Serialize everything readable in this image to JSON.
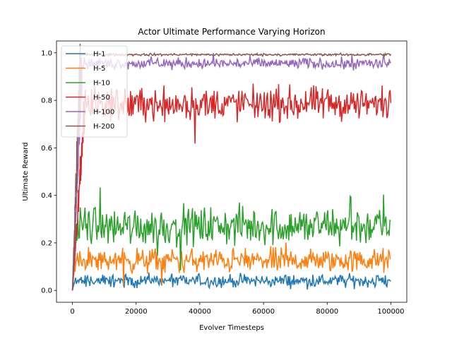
{
  "chart_data": {
    "type": "line",
    "title": "Actor Ultimate Performance Varying Horizon",
    "xlabel": "Evolver Timesteps",
    "ylabel": "Ultimate Reward",
    "xlim": [
      -5000,
      105000
    ],
    "ylim": [
      -0.05,
      1.05
    ],
    "xticks": [
      0,
      20000,
      40000,
      60000,
      80000,
      100000
    ],
    "yticks": [
      0.0,
      0.2,
      0.4,
      0.6,
      0.8,
      1.0
    ],
    "xtick_labels": [
      "0",
      "20000",
      "40000",
      "60000",
      "80000",
      "100000"
    ],
    "ytick_labels": [
      "0.0",
      "0.2",
      "0.4",
      "0.6",
      "0.8",
      "1.0"
    ],
    "grid": false,
    "legend_position": "top-left",
    "series": [
      {
        "name": "H-1",
        "color": "#1f77b4",
        "ramp_end_x": 500,
        "mean": 0.03,
        "low": 0.0,
        "high": 0.08,
        "outlier_high": 0.09
      },
      {
        "name": "H-5",
        "color": "#ff7f0e",
        "ramp_end_x": 800,
        "mean": 0.13,
        "low": 0.05,
        "high": 0.2,
        "outlier_low": 0.02,
        "outlier_high": 0.21
      },
      {
        "name": "H-10",
        "color": "#2ca02c",
        "ramp_end_x": 1200,
        "mean": 0.25,
        "low": 0.15,
        "high": 0.39,
        "outlier_low": 0.07,
        "outlier_high": 0.44
      },
      {
        "name": "H-50",
        "color": "#d62728",
        "ramp_end_x": 4000,
        "mean": 0.8,
        "low": 0.68,
        "high": 0.89,
        "outlier_low": 0.59,
        "outlier_high": 0.93
      },
      {
        "name": "H-100",
        "color": "#9467bd",
        "ramp_end_x": 3000,
        "mean": 0.96,
        "low": 0.92,
        "high": 0.99,
        "outlier_low": 0.86,
        "outlier_high": 1.0
      },
      {
        "name": "H-200",
        "color": "#8c564b",
        "ramp_end_x": 2500,
        "mean": 0.995,
        "low": 0.985,
        "high": 1.0
      }
    ]
  }
}
